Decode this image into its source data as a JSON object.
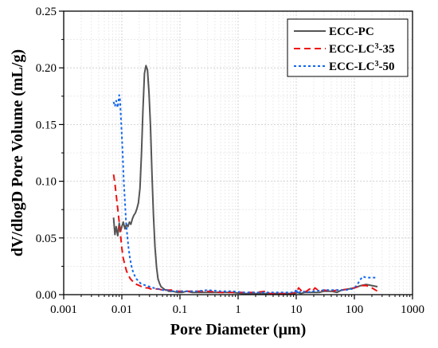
{
  "chart_data": {
    "type": "line",
    "xlabel": "Pore Diameter (μm)",
    "ylabel": "dV/dlogD Pore Volume (mL/g)",
    "xscale": "log",
    "xlim": [
      0.001,
      1000
    ],
    "ylim": [
      0,
      0.25
    ],
    "x_ticks": [
      "0.001",
      "0.01",
      "0.1",
      "1",
      "10",
      "100",
      "1000"
    ],
    "y_ticks": [
      "0.00",
      "0.05",
      "0.10",
      "0.15",
      "0.20",
      "0.25"
    ],
    "grid": true,
    "legend_position": "top-right",
    "series": [
      {
        "name": "ECC-PC",
        "name_html": "ECC-PC",
        "color": "#555555",
        "dash": "solid",
        "x": [
          0.0072,
          0.0076,
          0.008,
          0.0085,
          0.009,
          0.0095,
          0.01,
          0.0106,
          0.0113,
          0.012,
          0.0127,
          0.0135,
          0.0143,
          0.0152,
          0.0161,
          0.0171,
          0.0182,
          0.0193,
          0.0205,
          0.0218,
          0.0231,
          0.0245,
          0.026,
          0.0276,
          0.0293,
          0.0311,
          0.033,
          0.035,
          0.0372,
          0.0395,
          0.0419,
          0.0445,
          0.0472,
          0.0501,
          0.0532,
          0.0564,
          0.0599,
          0.0636,
          0.075,
          0.09,
          0.11,
          0.13,
          0.16,
          0.2,
          0.3,
          0.5,
          0.8,
          1.2,
          2,
          3,
          5,
          8,
          9.5,
          10.5,
          12,
          14,
          17,
          20,
          25,
          30,
          40,
          50,
          60,
          80,
          100,
          130,
          160,
          200,
          250
        ],
        "y": [
          0.068,
          0.053,
          0.06,
          0.052,
          0.063,
          0.056,
          0.06,
          0.064,
          0.058,
          0.062,
          0.06,
          0.064,
          0.062,
          0.067,
          0.07,
          0.072,
          0.076,
          0.081,
          0.094,
          0.125,
          0.163,
          0.195,
          0.202,
          0.198,
          0.178,
          0.148,
          0.105,
          0.07,
          0.042,
          0.024,
          0.014,
          0.01,
          0.007,
          0.006,
          0.005,
          0.004,
          0.004,
          0.003,
          0.003,
          0.002,
          0.002,
          0.003,
          0.002,
          0.002,
          0.002,
          0.002,
          0.002,
          0.001,
          0.001,
          0.001,
          0.001,
          0.001,
          0.001,
          0.002,
          0.001,
          0.002,
          0.002,
          0.002,
          0.002,
          0.003,
          0.003,
          0.002,
          0.004,
          0.005,
          0.006,
          0.008,
          0.009,
          0.008,
          0.007
        ]
      },
      {
        "name": "ECC-LC³-35",
        "name_html": "ECC-LC<tspan baseline-shift=\"super\" font-size=\"10\">3</tspan>-35",
        "color": "#ee1111",
        "dash": "8,5",
        "x": [
          0.0072,
          0.0076,
          0.008,
          0.0085,
          0.009,
          0.0095,
          0.01,
          0.0106,
          0.0113,
          0.012,
          0.013,
          0.014,
          0.0152,
          0.0165,
          0.018,
          0.02,
          0.022,
          0.025,
          0.028,
          0.032,
          0.037,
          0.043,
          0.05,
          0.06,
          0.075,
          0.09,
          0.11,
          0.14,
          0.2,
          0.3,
          0.5,
          0.8,
          1.2,
          2,
          3,
          3.5,
          5,
          8,
          10,
          11,
          13,
          15,
          17,
          19,
          21,
          25,
          30,
          40,
          50,
          60,
          80,
          100,
          130,
          160,
          200,
          250
        ],
        "y": [
          0.106,
          0.098,
          0.088,
          0.076,
          0.064,
          0.052,
          0.041,
          0.032,
          0.026,
          0.021,
          0.017,
          0.014,
          0.012,
          0.01,
          0.009,
          0.008,
          0.007,
          0.006,
          0.006,
          0.005,
          0.005,
          0.005,
          0.004,
          0.004,
          0.004,
          0.003,
          0.003,
          0.003,
          0.003,
          0.003,
          0.002,
          0.002,
          0.002,
          0.002,
          0.003,
          0.001,
          0.001,
          0.001,
          0.002,
          0.006,
          0.002,
          0.003,
          0.005,
          0.003,
          0.006,
          0.003,
          0.004,
          0.003,
          0.004,
          0.004,
          0.005,
          0.006,
          0.008,
          0.008,
          0.006,
          0.003
        ]
      },
      {
        "name": "ECC-LC³-50",
        "name_html": "ECC-LC<tspan baseline-shift=\"super\" font-size=\"10\">3</tspan>-50",
        "color": "#1166ee",
        "dash": "3,3",
        "x": [
          0.0072,
          0.0076,
          0.008,
          0.0085,
          0.009,
          0.0093,
          0.0096,
          0.01,
          0.0104,
          0.0108,
          0.0113,
          0.0118,
          0.0124,
          0.013,
          0.0137,
          0.0145,
          0.0154,
          0.0165,
          0.0178,
          0.0192,
          0.021,
          0.023,
          0.026,
          0.03,
          0.035,
          0.042,
          0.05,
          0.06,
          0.075,
          0.09,
          0.11,
          0.14,
          0.2,
          0.3,
          0.5,
          0.8,
          1.2,
          2,
          3,
          5,
          8,
          9.5,
          10,
          10.5,
          11,
          13,
          15,
          20,
          30,
          50,
          70,
          90,
          100,
          110,
          125,
          140,
          160,
          200,
          250
        ],
        "y": [
          0.17,
          0.166,
          0.171,
          0.165,
          0.176,
          0.172,
          0.158,
          0.14,
          0.122,
          0.1,
          0.082,
          0.065,
          0.052,
          0.042,
          0.033,
          0.026,
          0.021,
          0.017,
          0.014,
          0.012,
          0.01,
          0.009,
          0.008,
          0.007,
          0.006,
          0.005,
          0.004,
          0.004,
          0.003,
          0.003,
          0.003,
          0.003,
          0.003,
          0.004,
          0.003,
          0.003,
          0.002,
          0.002,
          0.002,
          0.002,
          0.002,
          0.002,
          0.005,
          0.001,
          0.002,
          0.003,
          0.002,
          0.003,
          0.004,
          0.004,
          0.004,
          0.005,
          0.006,
          0.008,
          0.013,
          0.016,
          0.015,
          0.015,
          0.015
        ]
      }
    ]
  }
}
